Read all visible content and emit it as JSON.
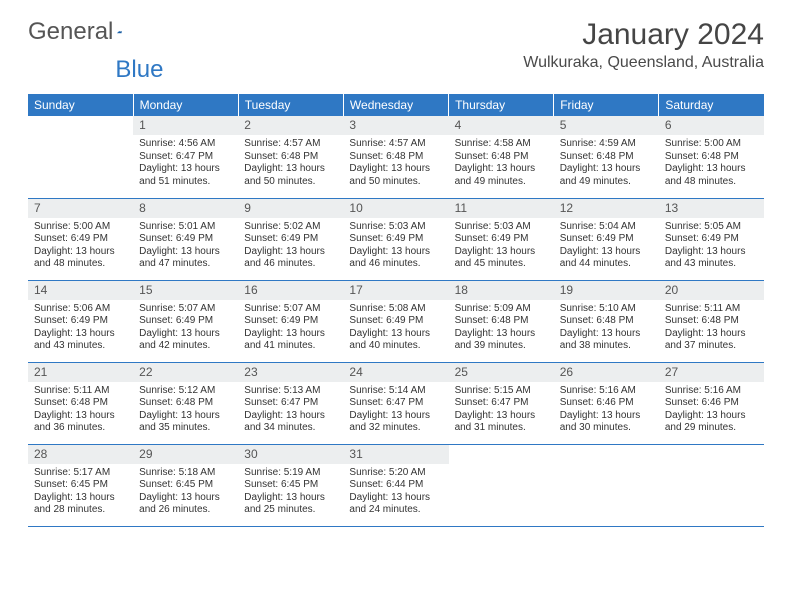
{
  "brand": {
    "word1": "General",
    "word2": "Blue"
  },
  "title": "January 2024",
  "location": "Wulkuraka, Queensland, Australia",
  "colors": {
    "header_bg": "#2f78c4",
    "header_text": "#ffffff",
    "daynum_bg": "#eceeef",
    "border": "#2f78c4",
    "text": "#333333"
  },
  "weekdays": [
    "Sunday",
    "Monday",
    "Tuesday",
    "Wednesday",
    "Thursday",
    "Friday",
    "Saturday"
  ],
  "weeks": [
    [
      {
        "n": "",
        "sr": "",
        "ss": "",
        "dl": ""
      },
      {
        "n": "1",
        "sr": "Sunrise: 4:56 AM",
        "ss": "Sunset: 6:47 PM",
        "dl": "Daylight: 13 hours and 51 minutes."
      },
      {
        "n": "2",
        "sr": "Sunrise: 4:57 AM",
        "ss": "Sunset: 6:48 PM",
        "dl": "Daylight: 13 hours and 50 minutes."
      },
      {
        "n": "3",
        "sr": "Sunrise: 4:57 AM",
        "ss": "Sunset: 6:48 PM",
        "dl": "Daylight: 13 hours and 50 minutes."
      },
      {
        "n": "4",
        "sr": "Sunrise: 4:58 AM",
        "ss": "Sunset: 6:48 PM",
        "dl": "Daylight: 13 hours and 49 minutes."
      },
      {
        "n": "5",
        "sr": "Sunrise: 4:59 AM",
        "ss": "Sunset: 6:48 PM",
        "dl": "Daylight: 13 hours and 49 minutes."
      },
      {
        "n": "6",
        "sr": "Sunrise: 5:00 AM",
        "ss": "Sunset: 6:48 PM",
        "dl": "Daylight: 13 hours and 48 minutes."
      }
    ],
    [
      {
        "n": "7",
        "sr": "Sunrise: 5:00 AM",
        "ss": "Sunset: 6:49 PM",
        "dl": "Daylight: 13 hours and 48 minutes."
      },
      {
        "n": "8",
        "sr": "Sunrise: 5:01 AM",
        "ss": "Sunset: 6:49 PM",
        "dl": "Daylight: 13 hours and 47 minutes."
      },
      {
        "n": "9",
        "sr": "Sunrise: 5:02 AM",
        "ss": "Sunset: 6:49 PM",
        "dl": "Daylight: 13 hours and 46 minutes."
      },
      {
        "n": "10",
        "sr": "Sunrise: 5:03 AM",
        "ss": "Sunset: 6:49 PM",
        "dl": "Daylight: 13 hours and 46 minutes."
      },
      {
        "n": "11",
        "sr": "Sunrise: 5:03 AM",
        "ss": "Sunset: 6:49 PM",
        "dl": "Daylight: 13 hours and 45 minutes."
      },
      {
        "n": "12",
        "sr": "Sunrise: 5:04 AM",
        "ss": "Sunset: 6:49 PM",
        "dl": "Daylight: 13 hours and 44 minutes."
      },
      {
        "n": "13",
        "sr": "Sunrise: 5:05 AM",
        "ss": "Sunset: 6:49 PM",
        "dl": "Daylight: 13 hours and 43 minutes."
      }
    ],
    [
      {
        "n": "14",
        "sr": "Sunrise: 5:06 AM",
        "ss": "Sunset: 6:49 PM",
        "dl": "Daylight: 13 hours and 43 minutes."
      },
      {
        "n": "15",
        "sr": "Sunrise: 5:07 AM",
        "ss": "Sunset: 6:49 PM",
        "dl": "Daylight: 13 hours and 42 minutes."
      },
      {
        "n": "16",
        "sr": "Sunrise: 5:07 AM",
        "ss": "Sunset: 6:49 PM",
        "dl": "Daylight: 13 hours and 41 minutes."
      },
      {
        "n": "17",
        "sr": "Sunrise: 5:08 AM",
        "ss": "Sunset: 6:49 PM",
        "dl": "Daylight: 13 hours and 40 minutes."
      },
      {
        "n": "18",
        "sr": "Sunrise: 5:09 AM",
        "ss": "Sunset: 6:48 PM",
        "dl": "Daylight: 13 hours and 39 minutes."
      },
      {
        "n": "19",
        "sr": "Sunrise: 5:10 AM",
        "ss": "Sunset: 6:48 PM",
        "dl": "Daylight: 13 hours and 38 minutes."
      },
      {
        "n": "20",
        "sr": "Sunrise: 5:11 AM",
        "ss": "Sunset: 6:48 PM",
        "dl": "Daylight: 13 hours and 37 minutes."
      }
    ],
    [
      {
        "n": "21",
        "sr": "Sunrise: 5:11 AM",
        "ss": "Sunset: 6:48 PM",
        "dl": "Daylight: 13 hours and 36 minutes."
      },
      {
        "n": "22",
        "sr": "Sunrise: 5:12 AM",
        "ss": "Sunset: 6:48 PM",
        "dl": "Daylight: 13 hours and 35 minutes."
      },
      {
        "n": "23",
        "sr": "Sunrise: 5:13 AM",
        "ss": "Sunset: 6:47 PM",
        "dl": "Daylight: 13 hours and 34 minutes."
      },
      {
        "n": "24",
        "sr": "Sunrise: 5:14 AM",
        "ss": "Sunset: 6:47 PM",
        "dl": "Daylight: 13 hours and 32 minutes."
      },
      {
        "n": "25",
        "sr": "Sunrise: 5:15 AM",
        "ss": "Sunset: 6:47 PM",
        "dl": "Daylight: 13 hours and 31 minutes."
      },
      {
        "n": "26",
        "sr": "Sunrise: 5:16 AM",
        "ss": "Sunset: 6:46 PM",
        "dl": "Daylight: 13 hours and 30 minutes."
      },
      {
        "n": "27",
        "sr": "Sunrise: 5:16 AM",
        "ss": "Sunset: 6:46 PM",
        "dl": "Daylight: 13 hours and 29 minutes."
      }
    ],
    [
      {
        "n": "28",
        "sr": "Sunrise: 5:17 AM",
        "ss": "Sunset: 6:45 PM",
        "dl": "Daylight: 13 hours and 28 minutes."
      },
      {
        "n": "29",
        "sr": "Sunrise: 5:18 AM",
        "ss": "Sunset: 6:45 PM",
        "dl": "Daylight: 13 hours and 26 minutes."
      },
      {
        "n": "30",
        "sr": "Sunrise: 5:19 AM",
        "ss": "Sunset: 6:45 PM",
        "dl": "Daylight: 13 hours and 25 minutes."
      },
      {
        "n": "31",
        "sr": "Sunrise: 5:20 AM",
        "ss": "Sunset: 6:44 PM",
        "dl": "Daylight: 13 hours and 24 minutes."
      },
      {
        "n": "",
        "sr": "",
        "ss": "",
        "dl": ""
      },
      {
        "n": "",
        "sr": "",
        "ss": "",
        "dl": ""
      },
      {
        "n": "",
        "sr": "",
        "ss": "",
        "dl": ""
      }
    ]
  ]
}
